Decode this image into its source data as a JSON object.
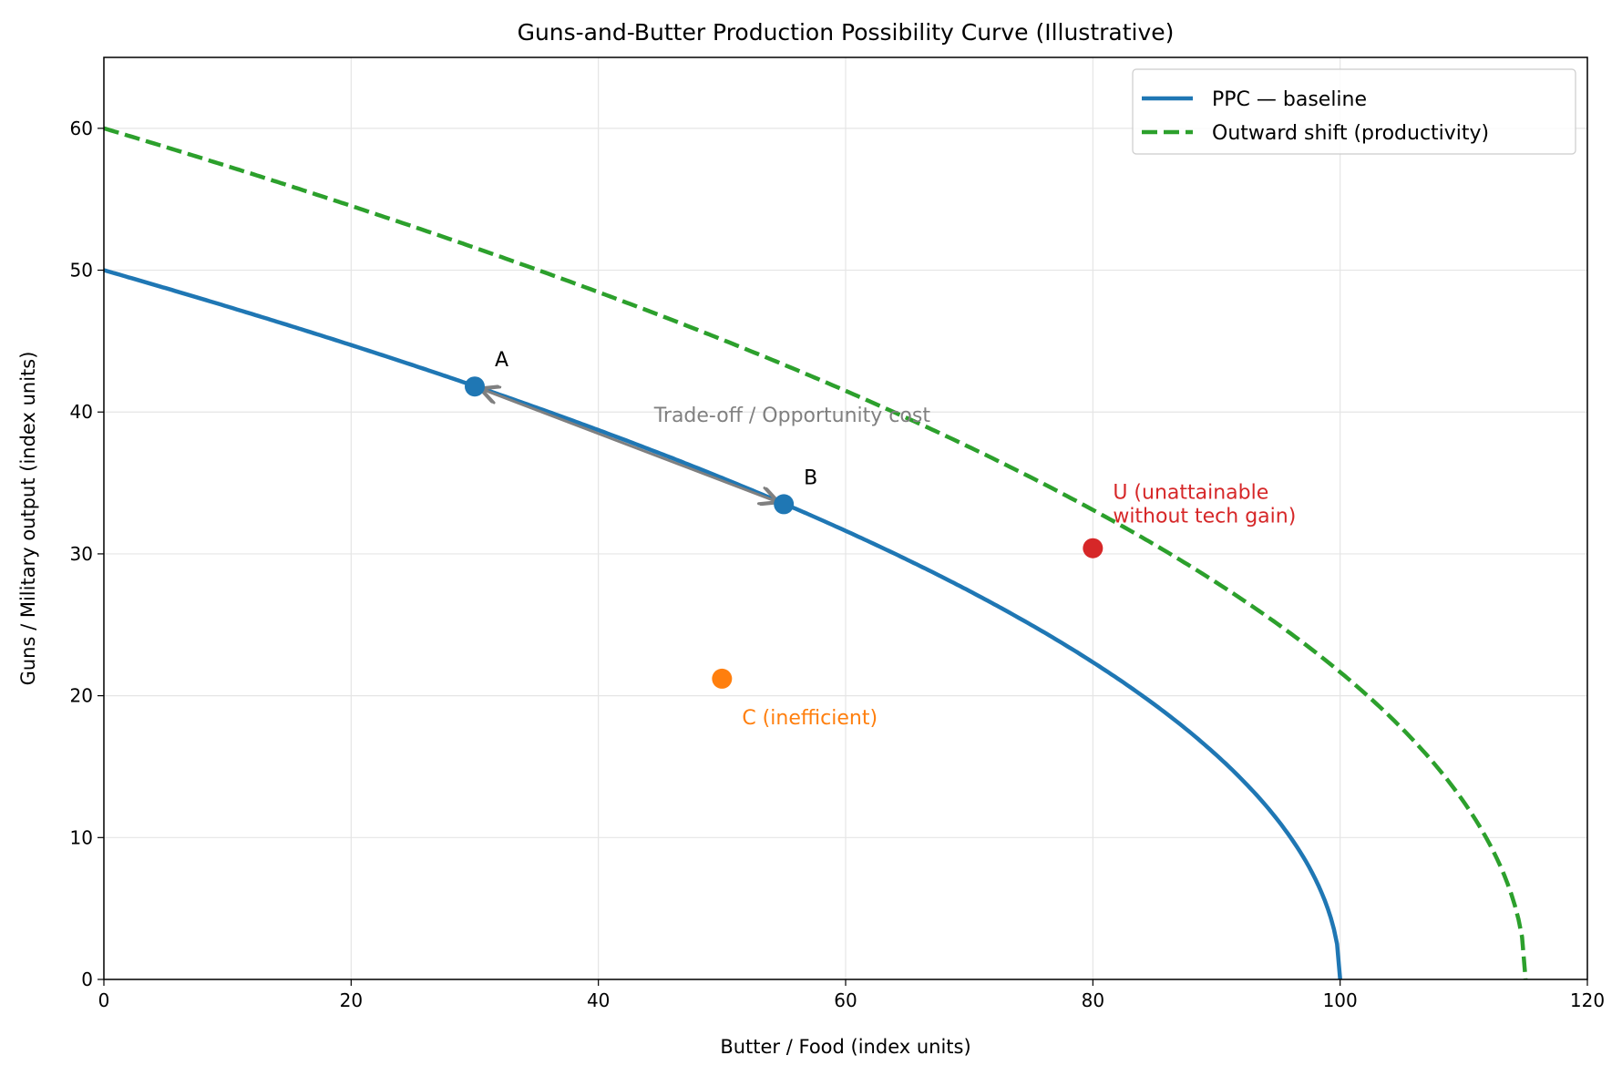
{
  "chart_data": {
    "type": "line",
    "title": "Guns-and-Butter Production Possibility Curve (Illustrative)",
    "xlabel": "Butter / Food (index units)",
    "ylabel": "Guns / Military output (index units)",
    "xlim": [
      0,
      120
    ],
    "ylim": [
      0,
      65
    ],
    "xticks": [
      0,
      20,
      40,
      60,
      80,
      100,
      120
    ],
    "yticks": [
      0,
      10,
      20,
      30,
      40,
      50,
      60
    ],
    "grid": true,
    "legend_placement": "top-right",
    "series": [
      {
        "name": "PPC — baseline",
        "style": "solid",
        "color": "#1f77b4",
        "formula": "y = 50*sqrt(1 - x/100)",
        "x_max": 100,
        "y_intercept": 50
      },
      {
        "name": "Outward shift (productivity)",
        "style": "dashed",
        "color": "#2ca02c",
        "formula": "y = 60*sqrt(1 - x/115)",
        "x_max": 115,
        "y_intercept": 60
      }
    ],
    "points": [
      {
        "label": "A",
        "x": 30,
        "y": 41.8,
        "color": "#1f77b4",
        "label_color": "#000000"
      },
      {
        "label": "B",
        "x": 55,
        "y": 33.5,
        "color": "#1f77b4",
        "label_color": "#000000"
      },
      {
        "label": "C (inefficient)",
        "x": 50,
        "y": 21.2,
        "color": "#ff7f0e",
        "label_color": "#ff7f0e"
      },
      {
        "label": "U (unattainable\nwithout tech gain)",
        "x": 80,
        "y": 30.4,
        "color": "#d62728",
        "label_color": "#d62728"
      }
    ],
    "annotations": [
      {
        "text": "Trade-off / Opportunity cost",
        "x": 44.5,
        "y": 39.3,
        "color": "#808080",
        "arrow_from": [
          55,
          33.5
        ],
        "arrow_to": [
          30,
          41.8
        ],
        "arrow_style": "double"
      }
    ]
  }
}
